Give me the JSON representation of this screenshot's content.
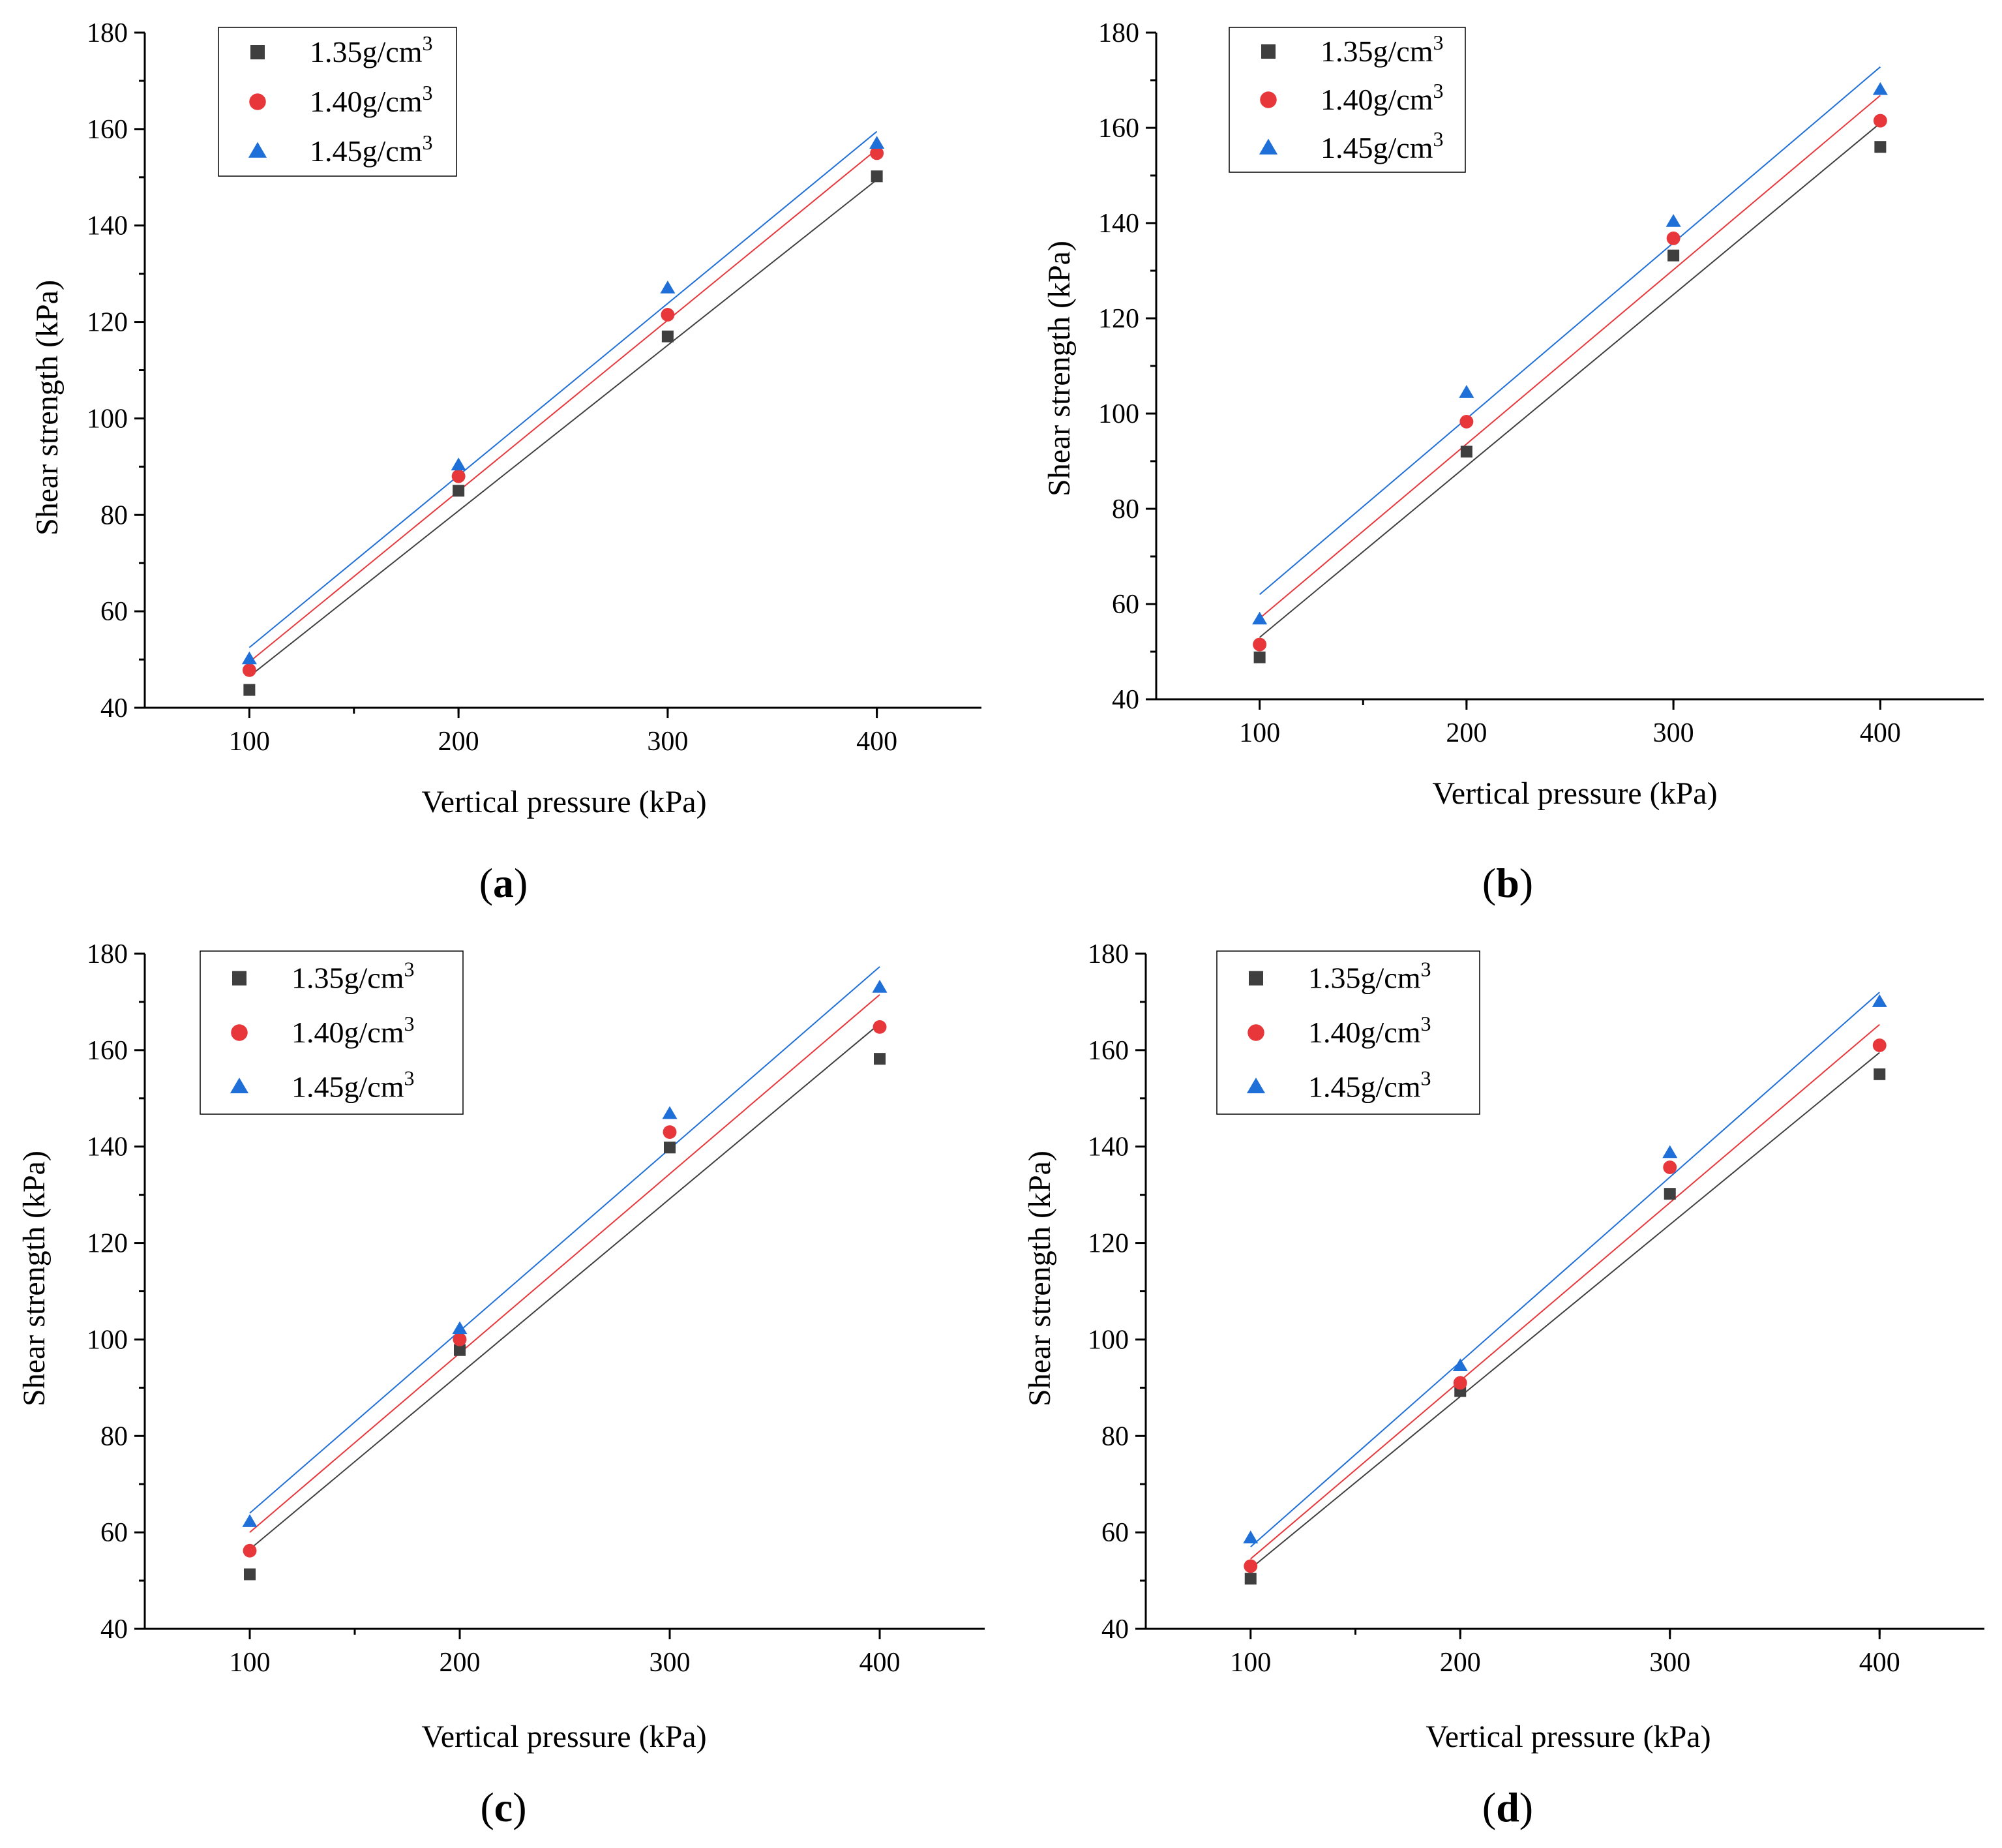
{
  "colors": {
    "s135": "#3f3f3f",
    "s140": "#e8373b",
    "s145": "#1f6fd8"
  },
  "legend": [
    {
      "key": "s135",
      "base": "1.35g/cm",
      "sup": "3",
      "marker": "square"
    },
    {
      "key": "s140",
      "base": "1.40g/cm",
      "sup": "3",
      "marker": "circle"
    },
    {
      "key": "s145",
      "base": "1.45g/cm",
      "sup": "3",
      "marker": "triangle"
    }
  ],
  "chart_data": [
    {
      "panel": "a",
      "type": "scatter",
      "xlabel": "Vertical pressure (kPa)",
      "ylabel": "Shear strength (kPa)",
      "xlim": [
        50,
        450
      ],
      "ylim": [
        40,
        180
      ],
      "xticks": [
        100,
        200,
        300,
        400
      ],
      "yticks": [
        40,
        60,
        80,
        100,
        120,
        140,
        160,
        180
      ],
      "x": [
        100,
        200,
        300,
        400
      ],
      "series": [
        {
          "key": "s135",
          "name": "1.35g/cm3",
          "values": [
            43.7,
            85.0,
            117.0,
            150.2
          ],
          "fit": [
            46.5,
            149.5
          ]
        },
        {
          "key": "s140",
          "name": "1.40g/cm3",
          "values": [
            47.8,
            88.0,
            121.5,
            155.0
          ],
          "fit": [
            49.5,
            155.8
          ]
        },
        {
          "key": "s145",
          "name": "1.45g/cm3",
          "values": [
            50.1,
            90.3,
            127.0,
            157.0
          ],
          "fit": [
            52.5,
            159.5
          ]
        }
      ]
    },
    {
      "panel": "b",
      "type": "scatter",
      "xlabel": "Vertical pressure (kPa)",
      "ylabel": "Shear strength (kPa)",
      "xlim": [
        50,
        450
      ],
      "ylim": [
        40,
        180
      ],
      "xticks": [
        100,
        200,
        300,
        400
      ],
      "yticks": [
        40,
        60,
        80,
        100,
        120,
        140,
        160,
        180
      ],
      "x": [
        100,
        200,
        300,
        400
      ],
      "series": [
        {
          "key": "s135",
          "name": "1.35g/cm3",
          "values": [
            48.8,
            92.0,
            133.2,
            156.0
          ],
          "fit": [
            53.0,
            161.0
          ]
        },
        {
          "key": "s140",
          "name": "1.40g/cm3",
          "values": [
            51.5,
            98.3,
            136.8,
            161.5
          ],
          "fit": [
            57.0,
            166.8
          ]
        },
        {
          "key": "s145",
          "name": "1.45g/cm3",
          "values": [
            56.8,
            104.4,
            140.3,
            168.0
          ],
          "fit": [
            62.0,
            172.8
          ]
        }
      ]
    },
    {
      "panel": "c",
      "type": "scatter",
      "xlabel": "Vertical pressure (kPa)",
      "ylabel": "Shear strength (kPa)",
      "xlim": [
        50,
        450
      ],
      "ylim": [
        40,
        180
      ],
      "xticks": [
        100,
        200,
        300,
        400
      ],
      "yticks": [
        40,
        60,
        80,
        100,
        120,
        140,
        160,
        180
      ],
      "x": [
        100,
        200,
        300,
        400
      ],
      "series": [
        {
          "key": "s135",
          "name": "1.35g/cm3",
          "values": [
            51.3,
            97.8,
            139.8,
            158.2
          ],
          "fit": [
            56.5,
            165.5
          ]
        },
        {
          "key": "s140",
          "name": "1.40g/cm3",
          "values": [
            56.2,
            100.0,
            143.0,
            164.8
          ],
          "fit": [
            60.0,
            171.5
          ]
        },
        {
          "key": "s145",
          "name": "1.45g/cm3",
          "values": [
            62.2,
            102.2,
            146.8,
            173.0
          ],
          "fit": [
            64.0,
            177.3
          ]
        }
      ]
    },
    {
      "panel": "d",
      "type": "scatter",
      "xlabel": "Vertical pressure (kPa)",
      "ylabel": "Shear strength (kPa)",
      "xlim": [
        50,
        450
      ],
      "ylim": [
        40,
        180
      ],
      "xticks": [
        100,
        200,
        300,
        400
      ],
      "yticks": [
        40,
        60,
        80,
        100,
        120,
        140,
        160,
        180
      ],
      "x": [
        100,
        200,
        300,
        400
      ],
      "series": [
        {
          "key": "s135",
          "name": "1.35g/cm3",
          "values": [
            50.4,
            89.3,
            130.2,
            155.0
          ],
          "fit": [
            52.5,
            159.5
          ]
        },
        {
          "key": "s140",
          "name": "1.40g/cm3",
          "values": [
            53.0,
            91.0,
            135.7,
            161.0
          ],
          "fit": [
            54.5,
            165.3
          ]
        },
        {
          "key": "s145",
          "name": "1.45g/cm3",
          "values": [
            58.8,
            94.5,
            138.7,
            170.0
          ],
          "fit": [
            57.0,
            172.0
          ]
        }
      ]
    }
  ]
}
